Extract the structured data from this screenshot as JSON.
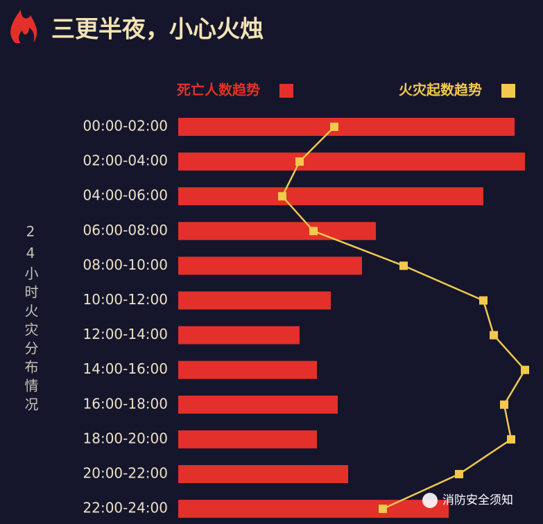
{
  "chart_data": {
    "type": "bar",
    "title": "三更半夜，小心火烛",
    "y_label": "24小时火灾分布情况",
    "categories": [
      "00:00-02:00",
      "02:00-04:00",
      "04:00-06:00",
      "06:00-08:00",
      "08:00-10:00",
      "10:00-12:00",
      "12:00-14:00",
      "14:00-16:00",
      "16:00-18:00",
      "18:00-20:00",
      "20:00-22:00",
      "22:00-24:00"
    ],
    "series": [
      {
        "name": "死亡人数趋势",
        "type": "bar",
        "color": "#e3302a",
        "values": [
          97,
          100,
          88,
          57,
          53,
          44,
          35,
          40,
          46,
          40,
          49,
          78
        ]
      },
      {
        "name": "火灾起数趋势",
        "type": "line",
        "color": "#f2c94c",
        "values": [
          45,
          35,
          30,
          39,
          65,
          88,
          91,
          100,
          94,
          96,
          81,
          59
        ]
      }
    ],
    "xlim": [
      0,
      100
    ]
  },
  "watermark": "消防安全须知"
}
